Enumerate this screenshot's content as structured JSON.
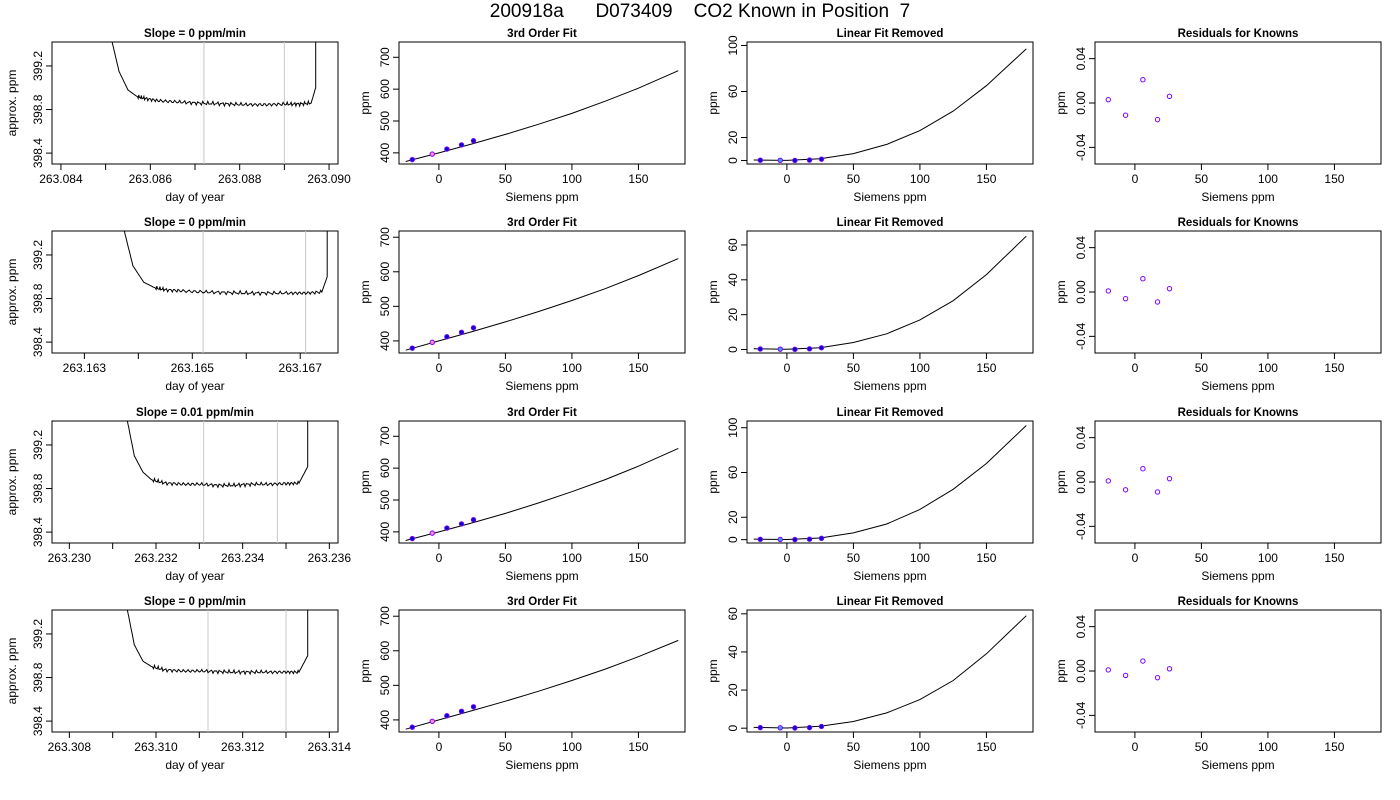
{
  "title": "200918a      D073409    CO2 Known in Position  7",
  "colors": {
    "curve": "#000000",
    "point_stroke": "#7b00ff",
    "known_fill": "#0000cc",
    "highlight_fill": "#40a0ff",
    "ref_line": "#c8c8c8",
    "pink_fill": "#ff88cc"
  },
  "chart_data": [
    {
      "type": "line",
      "row": 0,
      "col": 0,
      "title": "Slope =  0  ppm/min",
      "xlabel": "day of year",
      "ylabel": "approx. ppm",
      "xlim": [
        263.0838,
        263.0902
      ],
      "ylim": [
        398.3,
        399.42
      ],
      "xticks": [
        263.084,
        263.085,
        263.086,
        263.087,
        263.088,
        263.089,
        263.09
      ],
      "xtick_labels": [
        "263.084",
        "",
        "263.086",
        "",
        "263.088",
        "",
        "263.090"
      ],
      "yticks": [
        398.4,
        398.8,
        399.2
      ],
      "ytick_labels": [
        "398.4",
        "398.8",
        "399.2"
      ],
      "vlines": [
        263.0872,
        263.089
      ],
      "x": [
        263.0851,
        263.0853,
        263.0855,
        263.0857,
        263.0859,
        263.0862,
        263.0866,
        263.087,
        263.0874,
        263.0878,
        263.0882,
        263.0886,
        263.089,
        263.0893,
        263.0896,
        263.0897,
        263.0897
      ],
      "y": [
        399.5,
        399.15,
        398.98,
        398.92,
        398.9,
        398.88,
        398.87,
        398.86,
        398.855,
        398.85,
        398.845,
        398.845,
        398.85,
        398.85,
        398.86,
        399.0,
        399.5
      ]
    },
    {
      "type": "scatter+line",
      "row": 0,
      "col": 1,
      "title": "3rd Order Fit",
      "xlabel": "Siemens ppm",
      "ylabel": "ppm",
      "xlim": [
        -30,
        185
      ],
      "ylim": [
        365,
        748
      ],
      "xticks": [
        0,
        50,
        100,
        150
      ],
      "xtick_labels": [
        "0",
        "50",
        "100",
        "150"
      ],
      "yticks": [
        400,
        500,
        600,
        700
      ],
      "ytick_labels": [
        "400",
        "500",
        "600",
        "700"
      ],
      "curve_x": [
        -25,
        0,
        25,
        50,
        75,
        100,
        125,
        150,
        180
      ],
      "curve_y": [
        373,
        400,
        428,
        458,
        490,
        524,
        562,
        603,
        658
      ],
      "points": [
        {
          "x": -20,
          "y": 379,
          "kind": "known"
        },
        {
          "x": -5,
          "y": 396,
          "kind": "pink"
        },
        {
          "x": 6,
          "y": 412,
          "kind": "known"
        },
        {
          "x": 17,
          "y": 425,
          "kind": "known"
        },
        {
          "x": 26,
          "y": 438,
          "kind": "known"
        }
      ]
    },
    {
      "type": "scatter+line",
      "row": 0,
      "col": 2,
      "title": "Linear Fit Removed",
      "xlabel": "Siemens ppm",
      "ylabel": "ppm",
      "xlim": [
        -30,
        185
      ],
      "ylim": [
        -3,
        103
      ],
      "xticks": [
        0,
        50,
        100,
        150
      ],
      "xtick_labels": [
        "0",
        "50",
        "100",
        "150"
      ],
      "yticks": [
        0,
        20,
        60,
        100
      ],
      "ytick_labels": [
        "0",
        "20",
        "60",
        "100"
      ],
      "curve_x": [
        -25,
        0,
        25,
        50,
        75,
        100,
        125,
        150,
        180
      ],
      "curve_y": [
        0.5,
        0.1,
        1.5,
        6,
        14,
        26,
        43,
        65,
        97
      ],
      "points": [
        {
          "x": -20,
          "y": 0.3,
          "kind": "known"
        },
        {
          "x": -5,
          "y": 0.2,
          "kind": "highlight"
        },
        {
          "x": 6,
          "y": 0.1,
          "kind": "known"
        },
        {
          "x": 17,
          "y": 0.4,
          "kind": "known"
        },
        {
          "x": 26,
          "y": 1.2,
          "kind": "known"
        }
      ]
    },
    {
      "type": "scatter",
      "row": 0,
      "col": 3,
      "title": "Residuals for Knowns",
      "xlabel": "Siemens ppm",
      "ylabel": "ppm",
      "xlim": [
        -30,
        185
      ],
      "ylim": [
        -0.055,
        0.055
      ],
      "xticks": [
        0,
        50,
        100,
        150
      ],
      "xtick_labels": [
        "0",
        "50",
        "100",
        "150"
      ],
      "yticks": [
        -0.04,
        0.0,
        0.04
      ],
      "ytick_labels": [
        "-0.04",
        "0.00",
        "0.04"
      ],
      "points": [
        {
          "x": -20,
          "y": 0.003
        },
        {
          "x": -7,
          "y": -0.011
        },
        {
          "x": 6,
          "y": 0.021
        },
        {
          "x": 17,
          "y": -0.015
        },
        {
          "x": 26,
          "y": 0.006
        }
      ]
    },
    {
      "type": "line",
      "row": 1,
      "col": 0,
      "title": "Slope =  0  ppm/min",
      "xlabel": "day of year",
      "ylabel": "approx. ppm",
      "xlim": [
        263.1624,
        263.1677
      ],
      "ylim": [
        398.3,
        399.42
      ],
      "xticks": [
        263.163,
        263.164,
        263.165,
        263.166,
        263.167
      ],
      "xtick_labels": [
        "263.163",
        "",
        "263.165",
        "",
        "263.167"
      ],
      "yticks": [
        398.4,
        398.8,
        399.2
      ],
      "ytick_labels": [
        "398.4",
        "398.8",
        "399.2"
      ],
      "vlines": [
        263.1652,
        263.1671
      ],
      "x": [
        263.1637,
        263.1639,
        263.1641,
        263.1643,
        263.1645,
        263.1648,
        263.1652,
        263.1656,
        263.166,
        263.1664,
        263.1668,
        263.1671,
        263.1674,
        263.1675,
        263.1675
      ],
      "y": [
        399.5,
        399.1,
        398.95,
        398.9,
        398.88,
        398.87,
        398.86,
        398.855,
        398.85,
        398.85,
        398.85,
        398.85,
        398.86,
        399.0,
        399.5
      ]
    },
    {
      "type": "scatter+line",
      "row": 1,
      "col": 1,
      "title": "3rd Order Fit",
      "xlabel": "Siemens ppm",
      "ylabel": "ppm",
      "xlim": [
        -30,
        185
      ],
      "ylim": [
        365,
        718
      ],
      "xticks": [
        0,
        50,
        100,
        150
      ],
      "xtick_labels": [
        "0",
        "50",
        "100",
        "150"
      ],
      "yticks": [
        400,
        500,
        600,
        700
      ],
      "ytick_labels": [
        "400",
        "500",
        "600",
        "700"
      ],
      "curve_x": [
        -25,
        0,
        25,
        50,
        75,
        100,
        125,
        150,
        180
      ],
      "curve_y": [
        373,
        400,
        427,
        455,
        485,
        517,
        551,
        589,
        638
      ],
      "points": [
        {
          "x": -20,
          "y": 379,
          "kind": "known"
        },
        {
          "x": -5,
          "y": 396,
          "kind": "pink"
        },
        {
          "x": 6,
          "y": 412,
          "kind": "known"
        },
        {
          "x": 17,
          "y": 425,
          "kind": "known"
        },
        {
          "x": 26,
          "y": 438,
          "kind": "known"
        }
      ]
    },
    {
      "type": "scatter+line",
      "row": 1,
      "col": 2,
      "title": "Linear Fit Removed",
      "xlabel": "Siemens ppm",
      "ylabel": "ppm",
      "xlim": [
        -30,
        185
      ],
      "ylim": [
        -2,
        68
      ],
      "xticks": [
        0,
        50,
        100,
        150
      ],
      "xtick_labels": [
        "0",
        "50",
        "100",
        "150"
      ],
      "yticks": [
        0,
        20,
        40,
        60
      ],
      "ytick_labels": [
        "0",
        "20",
        "40",
        "60"
      ],
      "curve_x": [
        -25,
        0,
        25,
        50,
        75,
        100,
        125,
        150,
        180
      ],
      "curve_y": [
        0.4,
        0.1,
        1.0,
        4,
        9,
        17,
        28,
        43,
        65
      ],
      "points": [
        {
          "x": -20,
          "y": 0.3,
          "kind": "known"
        },
        {
          "x": -5,
          "y": 0.2,
          "kind": "highlight"
        },
        {
          "x": 6,
          "y": 0.1,
          "kind": "known"
        },
        {
          "x": 17,
          "y": 0.4,
          "kind": "known"
        },
        {
          "x": 26,
          "y": 1.0,
          "kind": "known"
        }
      ]
    },
    {
      "type": "scatter",
      "row": 1,
      "col": 3,
      "title": "Residuals for Knowns",
      "xlabel": "Siemens ppm",
      "ylabel": "ppm",
      "xlim": [
        -30,
        185
      ],
      "ylim": [
        -0.055,
        0.055
      ],
      "xticks": [
        0,
        50,
        100,
        150
      ],
      "xtick_labels": [
        "0",
        "50",
        "100",
        "150"
      ],
      "yticks": [
        -0.04,
        0.0,
        0.04
      ],
      "ytick_labels": [
        "-0.04",
        "0.00",
        "0.04"
      ],
      "points": [
        {
          "x": -20,
          "y": 0.001
        },
        {
          "x": -7,
          "y": -0.006
        },
        {
          "x": 6,
          "y": 0.012
        },
        {
          "x": 17,
          "y": -0.009
        },
        {
          "x": 26,
          "y": 0.003
        }
      ]
    },
    {
      "type": "line",
      "row": 2,
      "col": 0,
      "title": "Slope =  0.01  ppm/min",
      "xlabel": "day of year",
      "ylabel": "approx. ppm",
      "xlim": [
        263.2296,
        263.2362
      ],
      "ylim": [
        398.3,
        399.42
      ],
      "xticks": [
        263.23,
        263.231,
        263.232,
        263.233,
        263.234,
        263.235,
        263.236
      ],
      "xtick_labels": [
        "263.230",
        "",
        "263.232",
        "",
        "263.234",
        "",
        "263.236"
      ],
      "vlines": [
        263.2331,
        263.2348
      ],
      "yticks": [
        398.4,
        398.8,
        399.2
      ],
      "ytick_labels": [
        "398.4",
        "398.8",
        "399.2"
      ],
      "x": [
        263.2313,
        263.2315,
        263.2317,
        263.2319,
        263.2322,
        263.2326,
        263.233,
        263.2334,
        263.2338,
        263.2342,
        263.2346,
        263.235,
        263.2353,
        263.2355,
        263.2355
      ],
      "y": [
        399.5,
        399.1,
        398.95,
        398.88,
        398.85,
        398.84,
        398.84,
        398.83,
        398.83,
        398.84,
        398.84,
        398.845,
        398.85,
        399.0,
        399.5
      ]
    },
    {
      "type": "scatter+line",
      "row": 2,
      "col": 1,
      "title": "3rd Order Fit",
      "xlabel": "Siemens ppm",
      "ylabel": "ppm",
      "xlim": [
        -30,
        185
      ],
      "ylim": [
        365,
        748
      ],
      "xticks": [
        0,
        50,
        100,
        150
      ],
      "xtick_labels": [
        "0",
        "50",
        "100",
        "150"
      ],
      "yticks": [
        400,
        500,
        600,
        700
      ],
      "ytick_labels": [
        "400",
        "500",
        "600",
        "700"
      ],
      "curve_x": [
        -25,
        0,
        25,
        50,
        75,
        100,
        125,
        150,
        180
      ],
      "curve_y": [
        373,
        400,
        428,
        458,
        491,
        526,
        564,
        606,
        662
      ],
      "points": [
        {
          "x": -20,
          "y": 379,
          "kind": "known"
        },
        {
          "x": -5,
          "y": 396,
          "kind": "pink"
        },
        {
          "x": 6,
          "y": 412,
          "kind": "known"
        },
        {
          "x": 17,
          "y": 425,
          "kind": "known"
        },
        {
          "x": 26,
          "y": 438,
          "kind": "known"
        }
      ]
    },
    {
      "type": "scatter+line",
      "row": 2,
      "col": 2,
      "title": "Linear Fit Removed",
      "xlabel": "Siemens ppm",
      "ylabel": "ppm",
      "xlim": [
        -30,
        185
      ],
      "ylim": [
        -3,
        106
      ],
      "xticks": [
        0,
        50,
        100,
        150
      ],
      "xtick_labels": [
        "0",
        "50",
        "100",
        "150"
      ],
      "yticks": [
        0,
        20,
        60,
        100
      ],
      "ytick_labels": [
        "0",
        "20",
        "60",
        "100"
      ],
      "curve_x": [
        -25,
        0,
        25,
        50,
        75,
        100,
        125,
        150,
        180
      ],
      "curve_y": [
        0.5,
        0.1,
        1.5,
        6,
        14,
        27,
        45,
        68,
        102
      ],
      "points": [
        {
          "x": -20,
          "y": 0.3,
          "kind": "known"
        },
        {
          "x": -5,
          "y": 0.2,
          "kind": "highlight"
        },
        {
          "x": 6,
          "y": 0.1,
          "kind": "known"
        },
        {
          "x": 17,
          "y": 0.4,
          "kind": "known"
        },
        {
          "x": 26,
          "y": 1.2,
          "kind": "known"
        }
      ]
    },
    {
      "type": "scatter",
      "row": 2,
      "col": 3,
      "title": "Residuals for Knowns",
      "xlabel": "Siemens ppm",
      "ylabel": "ppm",
      "xlim": [
        -30,
        185
      ],
      "ylim": [
        -0.055,
        0.055
      ],
      "xticks": [
        0,
        50,
        100,
        150
      ],
      "xtick_labels": [
        "0",
        "50",
        "100",
        "150"
      ],
      "yticks": [
        -0.04,
        0.0,
        0.04
      ],
      "ytick_labels": [
        "-0.04",
        "0.00",
        "0.04"
      ],
      "points": [
        {
          "x": -20,
          "y": 0.001
        },
        {
          "x": -7,
          "y": -0.007
        },
        {
          "x": 6,
          "y": 0.012
        },
        {
          "x": 17,
          "y": -0.009
        },
        {
          "x": 26,
          "y": 0.003
        }
      ]
    },
    {
      "type": "line",
      "row": 3,
      "col": 0,
      "title": "Slope =  0  ppm/min",
      "xlabel": "day of year",
      "ylabel": "approx. ppm",
      "xlim": [
        263.3076,
        263.3142
      ],
      "ylim": [
        398.3,
        399.42
      ],
      "xticks": [
        263.308,
        263.309,
        263.31,
        263.311,
        263.312,
        263.313,
        263.314
      ],
      "xtick_labels": [
        "263.308",
        "",
        "263.310",
        "",
        "263.312",
        "",
        "263.314"
      ],
      "vlines": [
        263.3112,
        263.313
      ],
      "yticks": [
        398.4,
        398.8,
        399.2
      ],
      "ytick_labels": [
        "398.4",
        "398.8",
        "399.2"
      ],
      "x": [
        263.3093,
        263.3095,
        263.3097,
        263.3099,
        263.3102,
        263.3106,
        263.311,
        263.3114,
        263.3118,
        263.3122,
        263.3126,
        263.313,
        263.3133,
        263.3135,
        263.3135
      ],
      "y": [
        399.5,
        399.1,
        398.95,
        398.9,
        398.87,
        398.86,
        398.86,
        398.855,
        398.85,
        398.85,
        398.85,
        398.85,
        398.85,
        399.0,
        399.5
      ]
    },
    {
      "type": "scatter+line",
      "row": 3,
      "col": 1,
      "title": "3rd Order Fit",
      "xlabel": "Siemens ppm",
      "ylabel": "ppm",
      "xlim": [
        -30,
        185
      ],
      "ylim": [
        365,
        718
      ],
      "xticks": [
        0,
        50,
        100,
        150
      ],
      "xtick_labels": [
        "0",
        "50",
        "100",
        "150"
      ],
      "yticks": [
        400,
        500,
        600,
        700
      ],
      "ytick_labels": [
        "400",
        "500",
        "600",
        "700"
      ],
      "curve_x": [
        -25,
        0,
        25,
        50,
        75,
        100,
        125,
        150,
        180
      ],
      "curve_y": [
        373,
        400,
        427,
        454,
        483,
        514,
        547,
        583,
        630
      ],
      "points": [
        {
          "x": -20,
          "y": 379,
          "kind": "known"
        },
        {
          "x": -5,
          "y": 396,
          "kind": "pink"
        },
        {
          "x": 6,
          "y": 412,
          "kind": "known"
        },
        {
          "x": 17,
          "y": 425,
          "kind": "known"
        },
        {
          "x": 26,
          "y": 438,
          "kind": "known"
        }
      ]
    },
    {
      "type": "scatter+line",
      "row": 3,
      "col": 2,
      "title": "Linear Fit Removed",
      "xlabel": "Siemens ppm",
      "ylabel": "ppm",
      "xlim": [
        -30,
        185
      ],
      "ylim": [
        -2,
        62
      ],
      "xticks": [
        0,
        50,
        100,
        150
      ],
      "xtick_labels": [
        "0",
        "50",
        "100",
        "150"
      ],
      "yticks": [
        0,
        20,
        40,
        60
      ],
      "ytick_labels": [
        "0",
        "20",
        "40",
        "60"
      ],
      "curve_x": [
        -25,
        0,
        25,
        50,
        75,
        100,
        125,
        150,
        180
      ],
      "curve_y": [
        0.4,
        0.1,
        1.0,
        3.5,
        8,
        15,
        25,
        39,
        59
      ],
      "points": [
        {
          "x": -20,
          "y": 0.3,
          "kind": "known"
        },
        {
          "x": -5,
          "y": 0.2,
          "kind": "highlight"
        },
        {
          "x": 6,
          "y": 0.1,
          "kind": "known"
        },
        {
          "x": 17,
          "y": 0.3,
          "kind": "known"
        },
        {
          "x": 26,
          "y": 0.9,
          "kind": "known"
        }
      ]
    },
    {
      "type": "scatter",
      "row": 3,
      "col": 3,
      "title": "Residuals for Knowns",
      "xlabel": "Siemens ppm",
      "ylabel": "ppm",
      "xlim": [
        -30,
        185
      ],
      "ylim": [
        -0.055,
        0.055
      ],
      "xticks": [
        0,
        50,
        100,
        150
      ],
      "xtick_labels": [
        "0",
        "50",
        "100",
        "150"
      ],
      "yticks": [
        -0.04,
        0.0,
        0.04
      ],
      "ytick_labels": [
        "-0.04",
        "0.00",
        "0.04"
      ],
      "points": [
        {
          "x": -20,
          "y": 0.001
        },
        {
          "x": -7,
          "y": -0.004
        },
        {
          "x": 6,
          "y": 0.009
        },
        {
          "x": 17,
          "y": -0.006
        },
        {
          "x": 26,
          "y": 0.002
        }
      ]
    }
  ]
}
